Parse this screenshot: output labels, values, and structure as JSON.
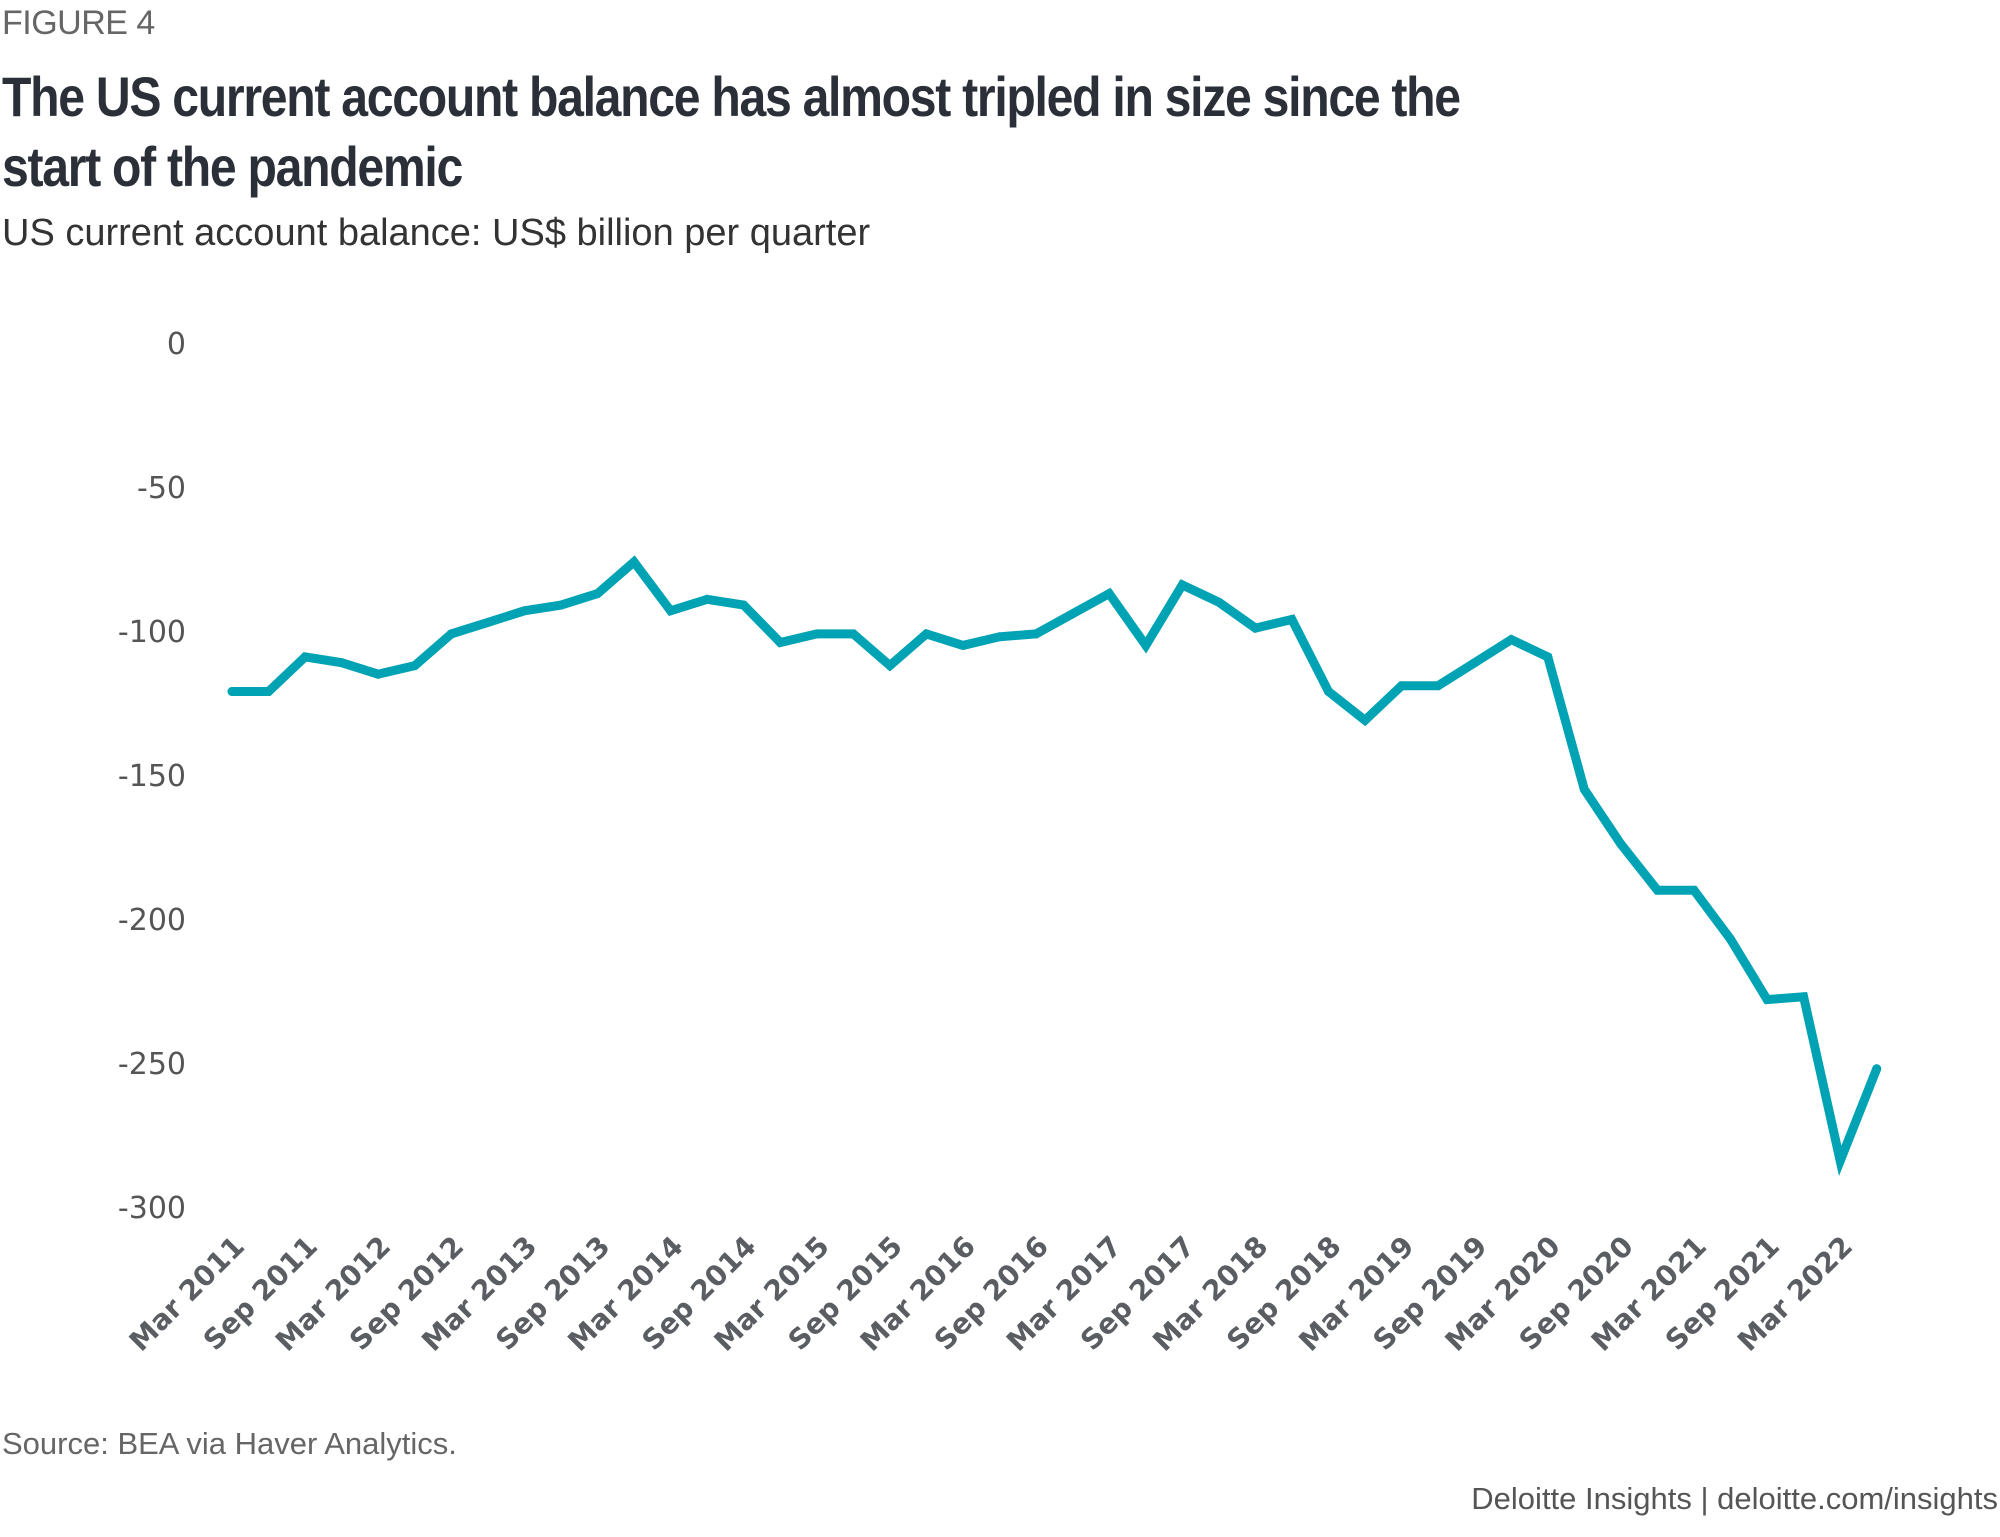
{
  "figure_label": "FIGURE 4",
  "title": "The US current account balance has almost tripled in size since the start of the pandemic",
  "subtitle": "US current account balance: US$ billion per quarter",
  "source": "Source: BEA via Haver Analytics.",
  "credit": "Deloitte Insights | deloitte.com/insights",
  "chart_data": {
    "type": "line",
    "title": "The US current account balance has almost tripled in size since the start of the pandemic",
    "subtitle": "US current account balance: US$ billion per quarter",
    "xlabel": "",
    "ylabel": "",
    "ylim": [
      -300,
      0
    ],
    "yticks": [
      0,
      -50,
      -100,
      -150,
      -200,
      -250,
      -300
    ],
    "grid": false,
    "legend": "none",
    "line_color": "#00a3b4",
    "x_tick_labels": [
      "Mar 2011",
      "Sep 2011",
      "Mar 2012",
      "Sep 2012",
      "Mar 2013",
      "Sep 2013",
      "Mar 2014",
      "Sep 2014",
      "Mar 2015",
      "Sep 2015",
      "Mar 2016",
      "Sep 2016",
      "Mar 2017",
      "Sep 2017",
      "Mar 2018",
      "Sep 2018",
      "Mar 2019",
      "Sep 2019",
      "Mar 2020",
      "Sep 2020",
      "Mar 2021",
      "Sep 2021",
      "Mar 2022"
    ],
    "x": [
      "Mar 2011",
      "Jun 2011",
      "Sep 2011",
      "Dec 2011",
      "Mar 2012",
      "Jun 2012",
      "Sep 2012",
      "Dec 2012",
      "Mar 2013",
      "Jun 2013",
      "Sep 2013",
      "Dec 2013",
      "Mar 2014",
      "Jun 2014",
      "Sep 2014",
      "Dec 2014",
      "Mar 2015",
      "Jun 2015",
      "Sep 2015",
      "Dec 2015",
      "Mar 2016",
      "Jun 2016",
      "Sep 2016",
      "Dec 2016",
      "Mar 2017",
      "Jun 2017",
      "Sep 2017",
      "Dec 2017",
      "Mar 2018",
      "Jun 2018",
      "Sep 2018",
      "Dec 2018",
      "Mar 2019",
      "Jun 2019",
      "Sep 2019",
      "Dec 2019",
      "Mar 2020",
      "Jun 2020",
      "Sep 2020",
      "Dec 2020",
      "Mar 2021",
      "Jun 2021",
      "Sep 2021",
      "Dec 2021",
      "Mar 2022",
      "Jun 2022"
    ],
    "series": [
      {
        "name": "US current account balance",
        "values": [
          -121,
          -121,
          -109,
          -111,
          -115,
          -112,
          -101,
          -97,
          -93,
          -91,
          -87,
          -76,
          -93,
          -89,
          -91,
          -104,
          -101,
          -101,
          -112,
          -101,
          -105,
          -102,
          -101,
          -94,
          -87,
          -105,
          -84,
          -90,
          -99,
          -96,
          -121,
          -131,
          -119,
          -119,
          -111,
          -103,
          -109,
          -155,
          -174,
          -190,
          -190,
          -207,
          -228,
          -227,
          -284,
          -252
        ]
      }
    ]
  }
}
